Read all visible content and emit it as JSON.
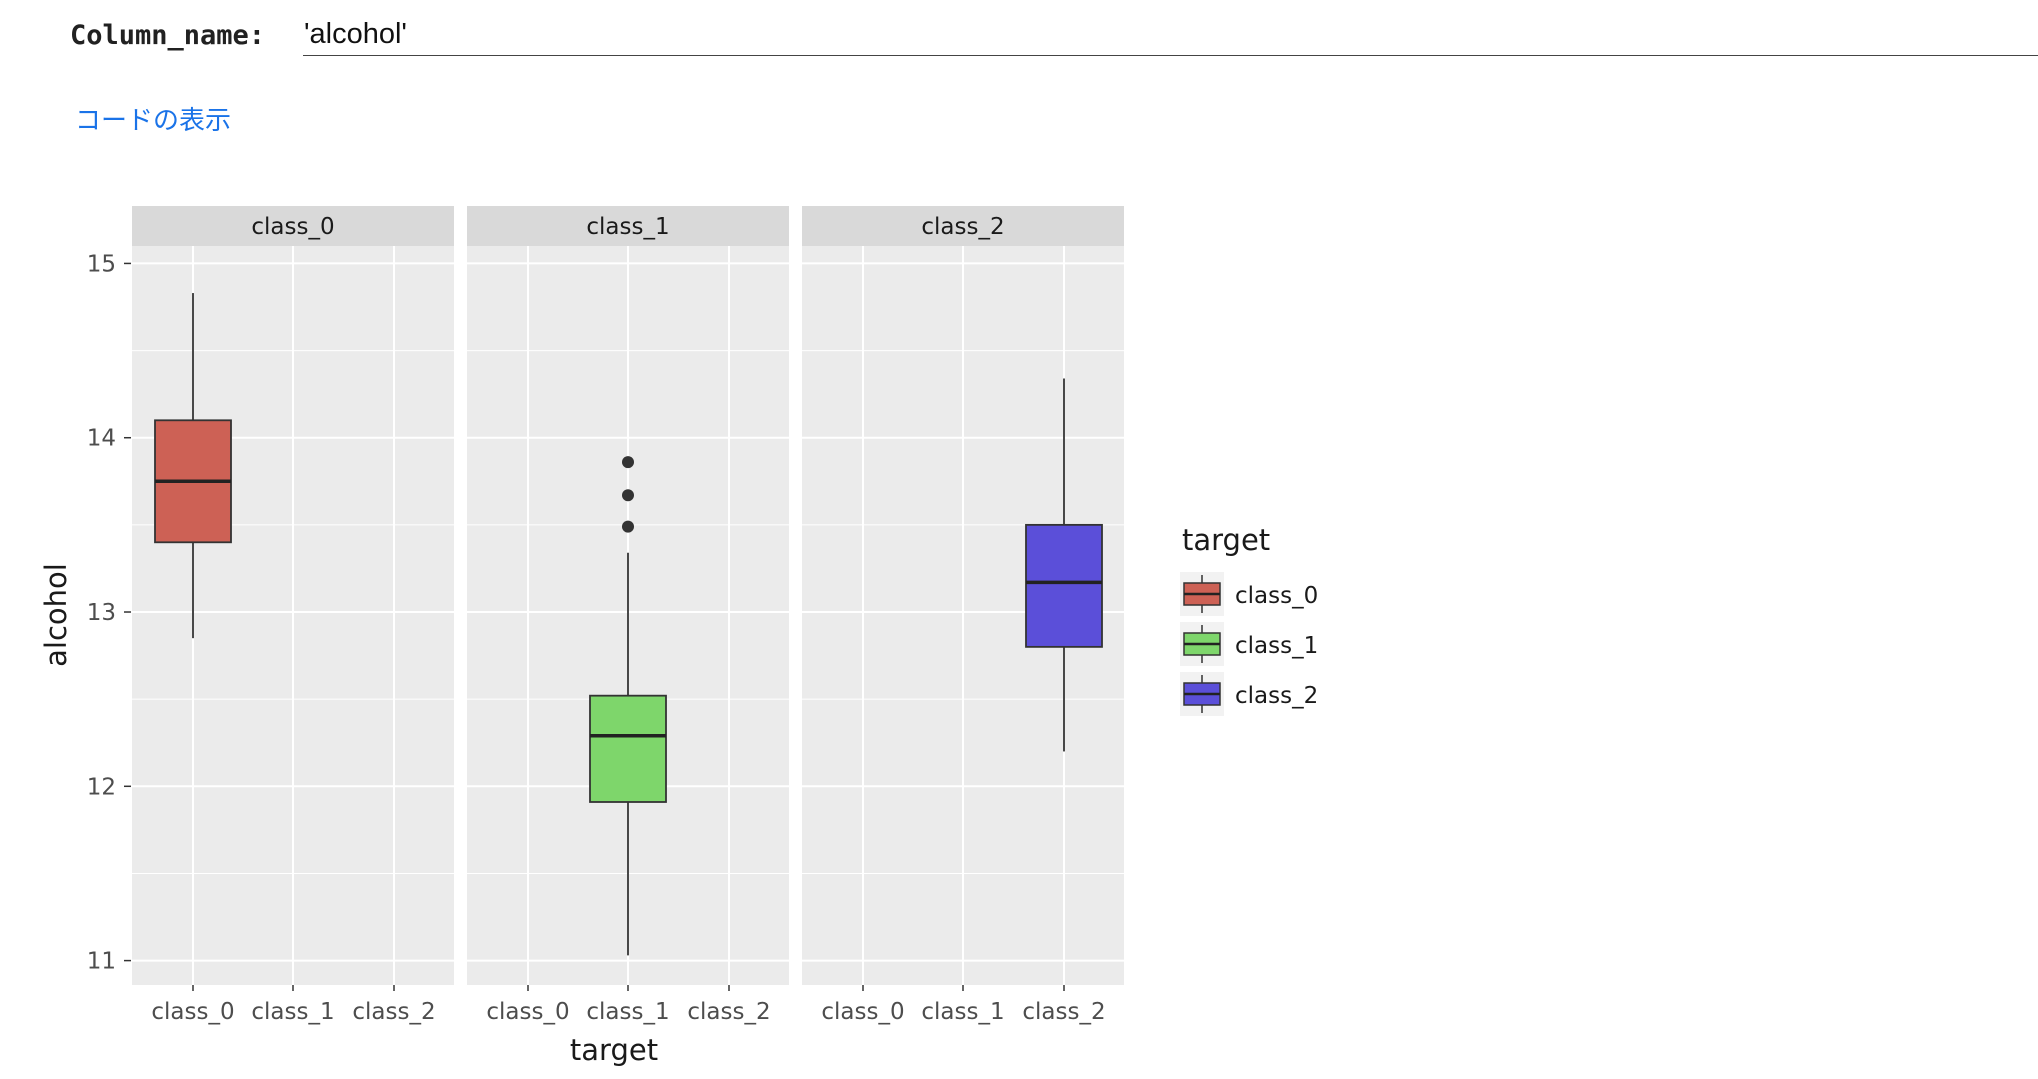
{
  "form": {
    "param_label": "Column_name:",
    "param_value": "'alcohol'",
    "code_toggle": "コードの表示"
  },
  "colors": {
    "panel_bg": "#ebebeb",
    "strip_bg": "#d9d9d9",
    "grid": "#ffffff",
    "class_0": "#cd6155",
    "class_1": "#7ed66b",
    "class_2": "#5b4fd9"
  },
  "chart_data": {
    "type": "boxplot",
    "facet_by": "target",
    "facets": [
      "class_0",
      "class_1",
      "class_2"
    ],
    "categories": [
      "class_0",
      "class_1",
      "class_2"
    ],
    "xlabel": "target",
    "ylabel": "alcohol",
    "ylim": [
      10.86,
      15.1
    ],
    "yticks": [
      "11",
      "12",
      "13",
      "14",
      "15"
    ],
    "legend": {
      "title": "target",
      "entries": [
        "class_0",
        "class_1",
        "class_2"
      ],
      "placement": "right"
    },
    "series": [
      {
        "name": "class_0",
        "facet": "class_0",
        "category": "class_0",
        "whisker_low": 12.85,
        "q1": 13.4,
        "median": 13.75,
        "q3": 14.1,
        "whisker_high": 14.83,
        "outliers": []
      },
      {
        "name": "class_1",
        "facet": "class_1",
        "category": "class_1",
        "whisker_low": 11.03,
        "q1": 11.91,
        "median": 12.29,
        "q3": 12.52,
        "whisker_high": 13.34,
        "outliers": [
          13.49,
          13.67,
          13.86
        ]
      },
      {
        "name": "class_2",
        "facet": "class_2",
        "category": "class_2",
        "whisker_low": 12.2,
        "q1": 12.8,
        "median": 13.17,
        "q3": 13.5,
        "whisker_high": 14.34,
        "outliers": []
      }
    ]
  }
}
